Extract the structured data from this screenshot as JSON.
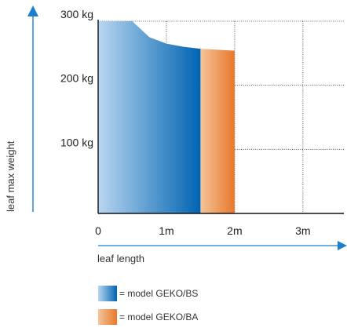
{
  "chart_data": {
    "type": "area",
    "xlabel": "leaf length",
    "ylabel": "leaf max weight",
    "x_ticks": [
      {
        "value": 0,
        "label": "0"
      },
      {
        "value": 1,
        "label": "1m"
      },
      {
        "value": 2,
        "label": "2m"
      },
      {
        "value": 3,
        "label": "3m"
      }
    ],
    "y_ticks": [
      {
        "value": 100,
        "label": "100 kg"
      },
      {
        "value": 200,
        "label": "200 kg"
      },
      {
        "value": 300,
        "label": "300 kg"
      }
    ],
    "xlim": [
      0,
      3.6
    ],
    "ylim": [
      0,
      300
    ],
    "grid": true,
    "series": [
      {
        "name": "= model GEKO/BS",
        "color_start": "#b9d6f0",
        "color_end": "#0064b2",
        "x": [
          0,
          0.5,
          0.75,
          1.0,
          1.25,
          1.5
        ],
        "y": [
          300,
          300,
          275,
          265,
          260,
          257
        ]
      },
      {
        "name": "= model GEKO/BA",
        "color_start": "#f4c49a",
        "color_end": "#e8782a",
        "x": [
          1.5,
          2.0
        ],
        "y": [
          257,
          254
        ]
      }
    ],
    "legend_position": "bottom-left",
    "axis_color": "#1a7fd0"
  }
}
